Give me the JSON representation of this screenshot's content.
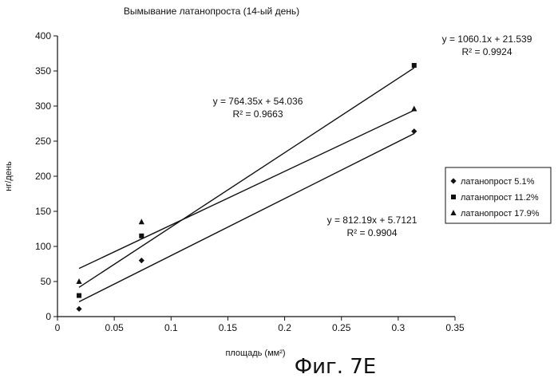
{
  "chart_data": {
    "type": "scatter",
    "title": "Вымывание латанопроста (14-ый день)",
    "xlabel": "площадь (мм²)",
    "ylabel": "нг/день",
    "xlim": [
      0,
      0.35
    ],
    "ylim": [
      0,
      400
    ],
    "x_ticks": [
      "0",
      "0.05",
      "0.1",
      "0.15",
      "0.2",
      "0.25",
      "0.3",
      "0.35"
    ],
    "y_ticks": [
      "0",
      "50",
      "100",
      "150",
      "200",
      "250",
      "300",
      "350",
      "400"
    ],
    "grid": false,
    "legend_position": "right",
    "series": [
      {
        "name": "латанопрост 5.1%",
        "marker": "diamond",
        "points": [
          [
            0.019,
            11
          ],
          [
            0.074,
            80
          ],
          [
            0.314,
            264
          ]
        ],
        "trendline": {
          "slope": 812.19,
          "intercept": 5.7121
        },
        "equation": "y = 812.19x + 5.7121",
        "r2": "R² = 0.9904"
      },
      {
        "name": "латанопрост 11.2%",
        "marker": "square",
        "points": [
          [
            0.019,
            30
          ],
          [
            0.074,
            115
          ],
          [
            0.314,
            358
          ]
        ],
        "trendline": {
          "slope": 1060.1,
          "intercept": 21.539
        },
        "equation": "y = 1060.1x + 21.539",
        "r2": "R² = 0.9924"
      },
      {
        "name": "латанопрост 17.9%",
        "marker": "triangle",
        "points": [
          [
            0.019,
            50
          ],
          [
            0.074,
            135
          ],
          [
            0.314,
            296
          ]
        ],
        "trendline": {
          "slope": 764.35,
          "intercept": 54.036
        },
        "equation": "y = 764.35x + 54.036",
        "r2": "R² = 0.9663"
      }
    ]
  },
  "figure_caption": "Фиг. 7E"
}
